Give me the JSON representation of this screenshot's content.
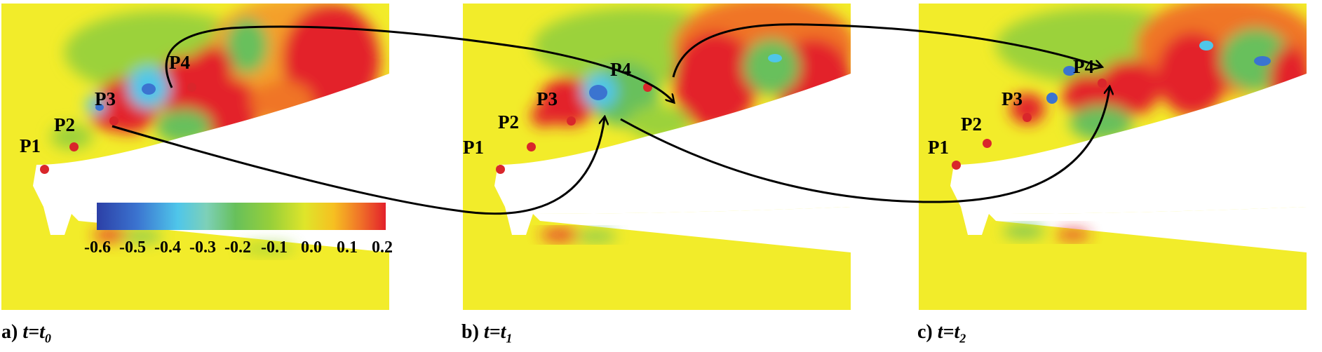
{
  "panels": [
    {
      "caption_letter": "a)",
      "caption_time": "t=t",
      "caption_sub": "0"
    },
    {
      "caption_letter": "b)",
      "caption_time": "t=t",
      "caption_sub": "1"
    },
    {
      "caption_letter": "c)",
      "caption_time": "t=t",
      "caption_sub": "2"
    }
  ],
  "probe_labels": [
    "P1",
    "P2",
    "P3",
    "P4"
  ],
  "colorbar": {
    "ticks": [
      "-0.6",
      "-0.5",
      "-0.4",
      "-0.3",
      "-0.2",
      "-0.1",
      "0.0",
      "0.1",
      "0.2"
    ],
    "min": -0.6,
    "max": 0.2
  },
  "colors": {
    "background_field": "#f2ec2a",
    "high": "#e3202b",
    "low": "#2c3fa6",
    "mid_green": "#67c05b",
    "probe": "#d9262b"
  }
}
